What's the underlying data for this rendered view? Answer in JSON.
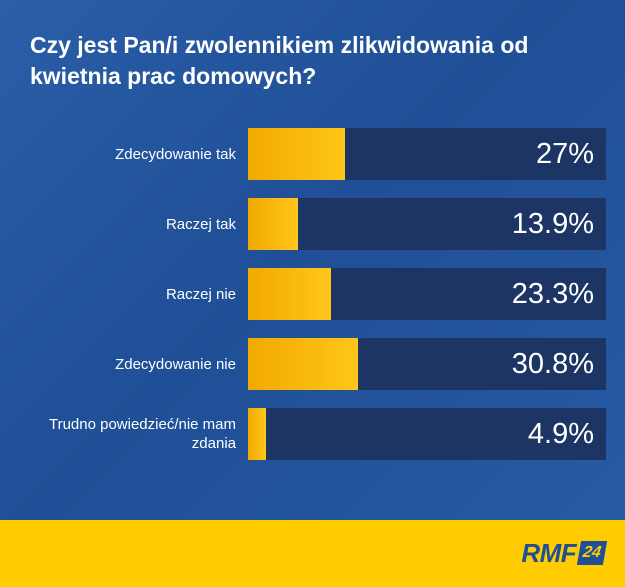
{
  "title": "Czy jest Pan/i zwolennikiem zlikwidowania od kwietnia prac domowych?",
  "chart_data": {
    "type": "bar",
    "orientation": "horizontal",
    "title": "Czy jest Pan/i zwolennikiem zlikwidowania od kwietnia prac domowych?",
    "categories": [
      "Zdecydowanie tak",
      "Raczej tak",
      "Raczej nie",
      "Zdecydowanie nie",
      "Trudno powiedzieć/nie mam zdania"
    ],
    "values": [
      27,
      13.9,
      23.3,
      30.8,
      4.9
    ],
    "value_labels": [
      "27%",
      "13.9%",
      "23.3%",
      "30.8%",
      "4.9%"
    ],
    "unit": "%",
    "xlim": [
      0,
      100
    ],
    "grid": false,
    "legend": "none",
    "colors": {
      "bar": "#ffc61a",
      "track": "#1c3565",
      "background": "#1f4f96"
    }
  },
  "footer": {
    "logo_text": "RMF",
    "logo_badge": "24",
    "color": "#ffcc00"
  }
}
